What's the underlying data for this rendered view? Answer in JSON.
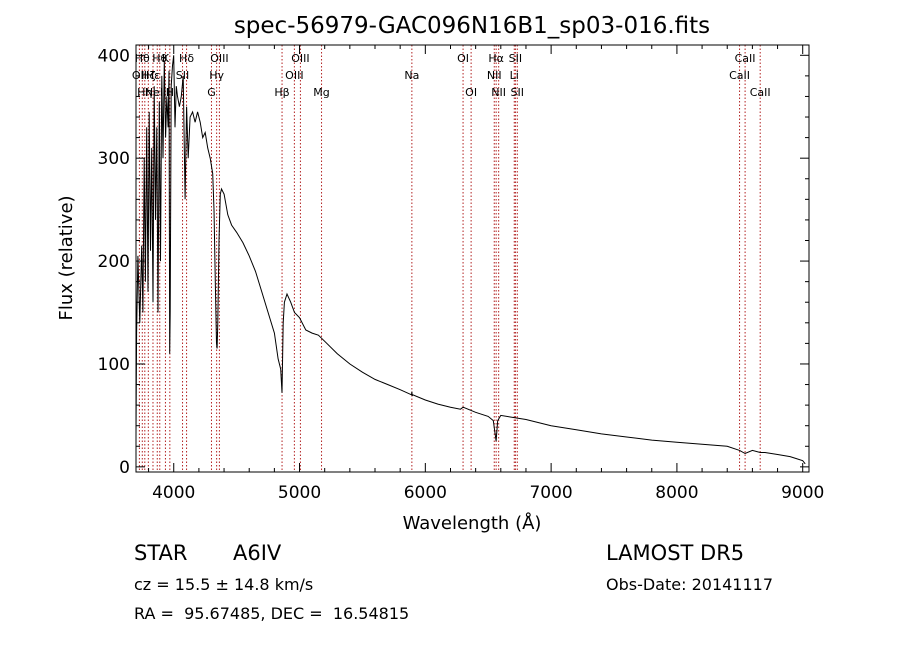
{
  "chart_data": {
    "type": "line",
    "title": "spec-56979-GAC096N16B1_sp03-016.fits",
    "xlabel": "Wavelength (Å)",
    "ylabel": "Flux (relative)",
    "xlim": [
      3700,
      9050
    ],
    "ylim": [
      -5,
      410
    ],
    "x_ticks": [
      4000,
      5000,
      6000,
      7000,
      8000,
      9000
    ],
    "y_ticks": [
      0,
      100,
      200,
      300,
      400
    ],
    "grid": false,
    "series": [
      {
        "x": [
          3700,
          3705,
          3715,
          3730,
          3745,
          3755,
          3765,
          3775,
          3785,
          3795,
          3805,
          3815,
          3825,
          3835,
          3845,
          3855,
          3865,
          3875,
          3885,
          3895,
          3905,
          3915,
          3925,
          3935,
          3945,
          3955,
          3962,
          3968,
          3972,
          3980,
          3990,
          4000,
          4010,
          4020,
          4030,
          4045,
          4060,
          4075,
          4090,
          4102,
          4115,
          4130,
          4150,
          4170,
          4190,
          4210,
          4230,
          4250,
          4270,
          4290,
          4310,
          4320,
          4330,
          4340,
          4345,
          4350,
          4360,
          4370,
          4380,
          4400,
          4430,
          4460,
          4500,
          4550,
          4600,
          4650,
          4700,
          4750,
          4800,
          4830,
          4850,
          4861,
          4870,
          4880,
          4900,
          4930,
          4960,
          5000,
          5050,
          5100,
          5150,
          5175,
          5200,
          5300,
          5400,
          5500,
          5600,
          5700,
          5800,
          5890,
          5893,
          5896,
          5900,
          6000,
          6100,
          6200,
          6280,
          6300,
          6400,
          6500,
          6540,
          6563,
          6575,
          6600,
          6700,
          6800,
          7000,
          7200,
          7400,
          7600,
          7800,
          8000,
          8200,
          8400,
          8498,
          8542,
          8600,
          8662,
          8700,
          8800,
          8900,
          8950,
          9000,
          9020
        ],
        "y": [
          30,
          130,
          205,
          140,
          215,
          150,
          300,
          180,
          330,
          170,
          345,
          210,
          310,
          160,
          370,
          240,
          330,
          150,
          355,
          200,
          380,
          300,
          395,
          320,
          360,
          330,
          385,
          110,
          150,
          370,
          390,
          400,
          330,
          370,
          360,
          350,
          360,
          380,
          260,
          350,
          300,
          340,
          345,
          335,
          345,
          335,
          320,
          325,
          310,
          300,
          285,
          250,
          180,
          120,
          115,
          140,
          220,
          265,
          270,
          265,
          245,
          235,
          228,
          218,
          205,
          190,
          170,
          150,
          130,
          105,
          95,
          72,
          140,
          160,
          168,
          160,
          150,
          145,
          133,
          130,
          128,
          125,
          122,
          110,
          100,
          92,
          85,
          80,
          75,
          70,
          73,
          69,
          70,
          65,
          61,
          58,
          56,
          58,
          53,
          49,
          45,
          25,
          45,
          50,
          48,
          46,
          40,
          36,
          32,
          29,
          26,
          24,
          22,
          20,
          16,
          13,
          16,
          14,
          14,
          12,
          10,
          8,
          6,
          3
        ]
      }
    ],
    "lines": [
      {
        "x": 3727,
        "label": "OII",
        "row": 1
      },
      {
        "x": 3750,
        "label": "Hθ",
        "row": 0
      },
      {
        "x": 3770,
        "label": "Hη",
        "row": 2
      },
      {
        "x": 3798,
        "label": "Hζ",
        "row": 1
      },
      {
        "x": 3835,
        "label": "Hε",
        "row": 1
      },
      {
        "x": 3869,
        "label": "NeIII",
        "row": 2
      },
      {
        "x": 3889,
        "label": "Hθ",
        "row": 0
      },
      {
        "x": 3934,
        "label": "K",
        "row": 0
      },
      {
        "x": 3969,
        "label": "H",
        "row": 2
      },
      {
        "x": 4070,
        "label": "SII",
        "row": 1
      },
      {
        "x": 4102,
        "label": "Hδ",
        "row": 0
      },
      {
        "x": 4300,
        "label": "G",
        "row": 2
      },
      {
        "x": 4341,
        "label": "Hγ",
        "row": 1
      },
      {
        "x": 4363,
        "label": "OIII",
        "row": 0
      },
      {
        "x": 4861,
        "label": "Hβ",
        "row": 2
      },
      {
        "x": 4959,
        "label": "OIII",
        "row": 1
      },
      {
        "x": 5007,
        "label": "OIII",
        "row": 0
      },
      {
        "x": 5175,
        "label": "Mg",
        "row": 2
      },
      {
        "x": 5893,
        "label": "Na",
        "row": 1
      },
      {
        "x": 6300,
        "label": "OI",
        "row": 0
      },
      {
        "x": 6364,
        "label": "OI",
        "row": 2
      },
      {
        "x": 6548,
        "label": "NII",
        "row": 1
      },
      {
        "x": 6563,
        "label": "Hα",
        "row": 0
      },
      {
        "x": 6583,
        "label": "NII",
        "row": 2
      },
      {
        "x": 6707,
        "label": "Li",
        "row": 1
      },
      {
        "x": 6716,
        "label": "SII",
        "row": 0
      },
      {
        "x": 6731,
        "label": "SII",
        "row": 2
      },
      {
        "x": 8498,
        "label": "CaII",
        "row": 1
      },
      {
        "x": 8542,
        "label": "CaII",
        "row": 0
      },
      {
        "x": 8662,
        "label": "CaII",
        "row": 2
      }
    ],
    "line_color": "#b22222"
  },
  "info": {
    "object_class": "STAR",
    "subclass": "A6IV",
    "survey": "LAMOST DR5",
    "redshift": "cz = 15.5 ± 14.8 km/s",
    "obs_date": "Obs-Date: 20141117",
    "coords": "RA =  95.67485, DEC =  16.54815"
  }
}
